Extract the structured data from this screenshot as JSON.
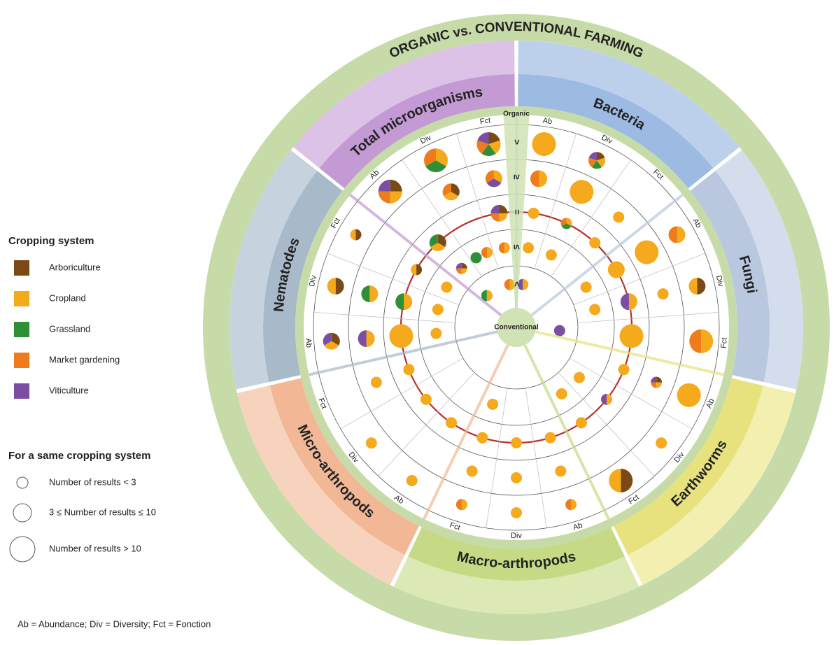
{
  "title": "ORGANIC vs. CONVENTIONAL FARMING",
  "outer_label": "Organic",
  "center_label": "Conventional",
  "levels": [
    ">",
    "≥",
    "=",
    "≤",
    "<"
  ],
  "legend": {
    "title": "Cropping system",
    "items": [
      {
        "label": "Arboriculture",
        "color": "#7b4a14"
      },
      {
        "label": "Cropland",
        "color": "#f5a91d"
      },
      {
        "label": "Grassland",
        "color": "#2f8f35"
      },
      {
        "label": "Market gardening",
        "color": "#ee7b1c"
      },
      {
        "label": "Viticulture",
        "color": "#7b4ea3"
      }
    ]
  },
  "size_legend": {
    "title": "For a same cropping system",
    "items": [
      "Number of results < 3",
      "3 ≤ Number of results ≤ 10",
      "Number of results > 10"
    ]
  },
  "footnote": "Ab = Abundance; Div = Diversity; Fct = Fonction",
  "groups": [
    {
      "name": "Bacteria",
      "color": "#9dbbe2",
      "light": "#bcd0ec",
      "metrics": [
        {
          "label": "Ab",
          "results": [
            {
              "level": ">",
              "size": "Number of results > 10",
              "systems": [
                "Cropland"
              ]
            },
            {
              "level": "≥",
              "size": "3 ≤ Number of results ≤ 10",
              "systems": [
                "Cropland",
                "Market gardening"
              ]
            },
            {
              "level": "=",
              "size": "Number of results < 3",
              "systems": [
                "Cropland"
              ]
            },
            {
              "level": "≤",
              "size": "Number of results < 3",
              "systems": [
                "Cropland"
              ]
            },
            {
              "level": "<",
              "size": "Number of results < 3",
              "systems": [
                "Cropland",
                "Viticulture"
              ]
            }
          ]
        },
        {
          "label": "Div",
          "results": [
            {
              "level": ">",
              "size": "3 ≤ Number of results ≤ 10",
              "systems": [
                "Arboriculture",
                "Cropland",
                "Grassland",
                "Market gardening",
                "Viticulture"
              ]
            },
            {
              "level": "≥",
              "size": "Number of results > 10",
              "systems": [
                "Cropland"
              ]
            },
            {
              "level": "=",
              "size": "Number of results < 3",
              "systems": [
                "Cropland",
                "Grassland",
                "Market gardening"
              ]
            },
            {
              "level": "≤",
              "size": "Number of results < 3",
              "systems": [
                "Cropland"
              ]
            }
          ]
        },
        {
          "label": "Fct",
          "results": [
            {
              "level": "≥",
              "size": "Number of results < 3",
              "systems": [
                "Cropland"
              ]
            },
            {
              "level": "=",
              "size": "Number of results < 3",
              "systems": [
                "Cropland"
              ]
            }
          ]
        }
      ]
    },
    {
      "name": "Fungi",
      "color": "#b9c8de",
      "light": "#d3ddeb",
      "metrics": [
        {
          "label": "Ab",
          "results": [
            {
              "level": ">",
              "size": "3 ≤ Number of results ≤ 10",
              "systems": [
                "Cropland",
                "Market gardening"
              ]
            },
            {
              "level": "≥",
              "size": "Number of results > 10",
              "systems": [
                "Cropland"
              ]
            },
            {
              "level": "=",
              "size": "3 ≤ Number of results ≤ 10",
              "systems": [
                "Cropland"
              ]
            },
            {
              "level": "≤",
              "size": "Number of results < 3",
              "systems": [
                "Cropland"
              ]
            }
          ]
        },
        {
          "label": "Div",
          "results": [
            {
              "level": ">",
              "size": "3 ≤ Number of results ≤ 10",
              "systems": [
                "Arboriculture",
                "Cropland"
              ]
            },
            {
              "level": "≥",
              "size": "Number of results < 3",
              "systems": [
                "Cropland"
              ]
            },
            {
              "level": "=",
              "size": "3 ≤ Number of results ≤ 10",
              "systems": [
                "Cropland",
                "Viticulture"
              ]
            },
            {
              "level": "≤",
              "size": "Number of results < 3",
              "systems": [
                "Cropland"
              ]
            }
          ]
        },
        {
          "label": "Fct",
          "results": [
            {
              "level": ">",
              "size": "Number of results > 10",
              "systems": [
                "Cropland",
                "Market gardening"
              ]
            },
            {
              "level": "=",
              "size": "Number of results > 10",
              "systems": [
                "Cropland"
              ]
            },
            {
              "level": "<",
              "size": "Number of results < 3",
              "systems": [
                "Viticulture"
              ]
            }
          ]
        }
      ]
    },
    {
      "name": "Earthworms",
      "color": "#e8e27e",
      "light": "#f3efb0",
      "metrics": [
        {
          "label": "Ab",
          "results": [
            {
              "level": ">",
              "size": "Number of results > 10",
              "systems": [
                "Cropland"
              ]
            },
            {
              "level": "≥",
              "size": "Number of results < 3",
              "systems": [
                "Arboriculture",
                "Cropland",
                "Market gardening",
                "Viticulture"
              ]
            },
            {
              "level": "=",
              "size": "Number of results < 3",
              "systems": [
                "Cropland"
              ]
            }
          ]
        },
        {
          "label": "Div",
          "results": [
            {
              "level": ">",
              "size": "Number of results < 3",
              "systems": [
                "Cropland"
              ]
            },
            {
              "level": "=",
              "size": "Number of results < 3",
              "systems": [
                "Cropland",
                "Viticulture"
              ]
            },
            {
              "level": "≤",
              "size": "Number of results < 3",
              "systems": [
                "Cropland"
              ]
            }
          ]
        },
        {
          "label": "Fct",
          "results": [
            {
              "level": ">",
              "size": "Number of results > 10",
              "systems": [
                "Arboriculture",
                "Cropland"
              ]
            },
            {
              "level": "=",
              "size": "Number of results < 3",
              "systems": [
                "Cropland"
              ]
            },
            {
              "level": "≤",
              "size": "Number of results < 3",
              "systems": [
                "Cropland"
              ]
            }
          ]
        }
      ]
    },
    {
      "name": "Macro-arthropods",
      "color": "#c6da86",
      "light": "#dde9b4",
      "metrics": [
        {
          "label": "Ab",
          "results": [
            {
              "level": ">",
              "size": "Number of results < 3",
              "systems": [
                "Cropland",
                "Market gardening"
              ]
            },
            {
              "level": "≥",
              "size": "Number of results < 3",
              "systems": [
                "Cropland"
              ]
            },
            {
              "level": "=",
              "size": "Number of results < 3",
              "systems": [
                "Cropland"
              ]
            }
          ]
        },
        {
          "label": "Div",
          "results": [
            {
              "level": ">",
              "size": "Number of results < 3",
              "systems": [
                "Cropland"
              ]
            },
            {
              "level": "≥",
              "size": "Number of results < 3",
              "systems": [
                "Cropland"
              ]
            },
            {
              "level": "=",
              "size": "Number of results < 3",
              "systems": [
                "Cropland"
              ]
            }
          ]
        },
        {
          "label": "Fct",
          "results": [
            {
              "level": ">",
              "size": "Number of results < 3",
              "systems": [
                "Cropland",
                "Market gardening"
              ]
            },
            {
              "level": "≥",
              "size": "Number of results < 3",
              "systems": [
                "Cropland"
              ]
            },
            {
              "level": "=",
              "size": "Number of results < 3",
              "systems": [
                "Cropland"
              ]
            },
            {
              "level": "≤",
              "size": "Number of results < 3",
              "systems": [
                "Cropland"
              ]
            }
          ]
        }
      ]
    },
    {
      "name": "Micro-arthropods",
      "color": "#f2b896",
      "light": "#f7d3bd",
      "metrics": [
        {
          "label": "Ab",
          "results": [
            {
              "level": ">",
              "size": "Number of results < 3",
              "systems": [
                "Cropland"
              ]
            },
            {
              "level": "=",
              "size": "Number of results < 3",
              "systems": [
                "Cropland"
              ]
            }
          ]
        },
        {
          "label": "Div",
          "results": [
            {
              "level": ">",
              "size": "Number of results < 3",
              "systems": [
                "Cropland"
              ]
            },
            {
              "level": "=",
              "size": "Number of results < 3",
              "systems": [
                "Cropland"
              ]
            }
          ]
        },
        {
          "label": "Fct",
          "results": [
            {
              "level": "≥",
              "size": "Number of results < 3",
              "systems": [
                "Cropland"
              ]
            },
            {
              "level": "=",
              "size": "Number of results < 3",
              "systems": [
                "Cropland"
              ]
            }
          ]
        }
      ]
    },
    {
      "name": "Nematodes",
      "color": "#a8b9ca",
      "light": "#c6d3df",
      "metrics": [
        {
          "label": "Ab",
          "results": [
            {
              "level": ">",
              "size": "3 ≤ Number of results ≤ 10",
              "systems": [
                "Arboriculture",
                "Cropland",
                "Viticulture"
              ]
            },
            {
              "level": "≥",
              "size": "3 ≤ Number of results ≤ 10",
              "systems": [
                "Cropland",
                "Viticulture"
              ]
            },
            {
              "level": "=",
              "size": "Number of results > 10",
              "systems": [
                "Cropland"
              ]
            },
            {
              "level": "≤",
              "size": "Number of results < 3",
              "systems": [
                "Cropland"
              ]
            }
          ]
        },
        {
          "label": "Div",
          "results": [
            {
              "level": ">",
              "size": "3 ≤ Number of results ≤ 10",
              "systems": [
                "Arboriculture",
                "Cropland"
              ]
            },
            {
              "level": "≥",
              "size": "3 ≤ Number of results ≤ 10",
              "systems": [
                "Cropland",
                "Grassland"
              ]
            },
            {
              "level": "=",
              "size": "3 ≤ Number of results ≤ 10",
              "systems": [
                "Cropland",
                "Grassland"
              ]
            },
            {
              "level": "≤",
              "size": "Number of results < 3",
              "systems": [
                "Cropland"
              ]
            }
          ]
        },
        {
          "label": "Fct",
          "results": [
            {
              "level": ">",
              "size": "Number of results < 3",
              "systems": [
                "Arboriculture",
                "Cropland"
              ]
            },
            {
              "level": "=",
              "size": "Number of results < 3",
              "systems": [
                "Arboriculture",
                "Cropland"
              ]
            },
            {
              "level": "≤",
              "size": "Number of results < 3",
              "systems": [
                "Cropland"
              ]
            }
          ]
        }
      ]
    },
    {
      "name": "Total microorganisms",
      "color": "#c39ad4",
      "light": "#dcc2e6",
      "metrics": [
        {
          "label": "Ab",
          "results": [
            {
              "level": ">",
              "size": "Number of results > 10",
              "systems": [
                "Arboriculture",
                "Cropland",
                "Market gardening",
                "Viticulture"
              ]
            },
            {
              "level": "=",
              "size": "3 ≤ Number of results ≤ 10",
              "systems": [
                "Arboriculture",
                "Cropland",
                "Grassland"
              ]
            },
            {
              "level": "≤",
              "size": "Number of results < 3",
              "systems": [
                "Arboriculture",
                "Cropland",
                "Market gardening",
                "Viticulture"
              ]
            },
            {
              "level": "<",
              "size": "Number of results < 3",
              "systems": [
                "Cropland",
                "Grassland"
              ]
            }
          ]
        },
        {
          "label": "Div",
          "results": [
            {
              "level": ">",
              "size": "Number of results > 10",
              "systems": [
                "Cropland",
                "Grassland",
                "Market gardening"
              ]
            },
            {
              "level": "≥",
              "size": "3 ≤ Number of results ≤ 10",
              "systems": [
                "Arboriculture",
                "Cropland",
                "Market gardening"
              ]
            },
            {
              "level": "≤",
              "size": "Number of results < 3",
              "systems": [
                "Grassland"
              ]
            },
            {
              "level": "≤",
              "size": "Number of results < 3",
              "systems": [
                "Cropland",
                "Market gardening"
              ]
            }
          ]
        },
        {
          "label": "Fct",
          "results": [
            {
              "level": ">",
              "size": "Number of results > 10",
              "systems": [
                "Arboriculture",
                "Cropland",
                "Grassland",
                "Market gardening",
                "Viticulture"
              ]
            },
            {
              "level": "≥",
              "size": "3 ≤ Number of results ≤ 10",
              "systems": [
                "Cropland",
                "Viticulture",
                "Market gardening"
              ]
            },
            {
              "level": "=",
              "size": "3 ≤ Number of results ≤ 10",
              "systems": [
                "Arboriculture",
                "Cropland",
                "Market gardening",
                "Viticulture"
              ]
            },
            {
              "level": "≤",
              "size": "Number of results < 3",
              "systems": [
                "Cropland",
                "Market gardening"
              ]
            },
            {
              "level": "<",
              "size": "Number of results < 3",
              "systems": [
                "Cropland",
                "Market gardening"
              ]
            }
          ]
        }
      ]
    }
  ]
}
